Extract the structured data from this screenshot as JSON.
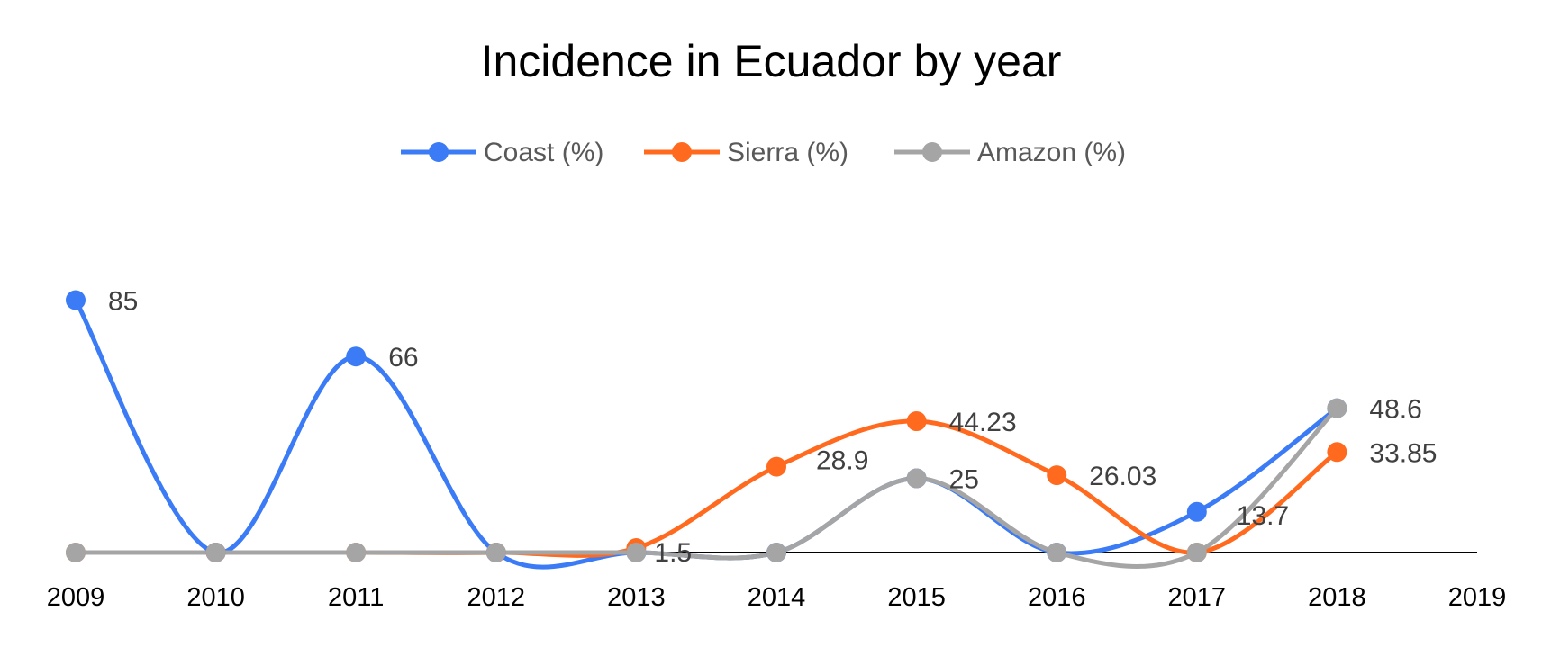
{
  "chart_data": {
    "type": "line",
    "title": "Incidence in Ecuador by year",
    "x": [
      "2009",
      "2010",
      "2011",
      "2012",
      "2013",
      "2014",
      "2015",
      "2016",
      "2017",
      "2018"
    ],
    "x_ticks": [
      "2009",
      "2010",
      "2011",
      "2012",
      "2013",
      "2014",
      "2015",
      "2016",
      "2017",
      "2018",
      "2019"
    ],
    "ylim": [
      0,
      100
    ],
    "smooth": true,
    "grid": false,
    "legend_position": "top",
    "series": [
      {
        "name": "Coast (%)",
        "color": "#3B7BF5",
        "values": [
          85,
          0,
          66,
          0,
          0,
          0,
          25,
          0,
          13.7,
          48.6
        ],
        "labels": [
          "85",
          "",
          "66",
          "",
          "",
          "",
          "",
          "",
          "13.7",
          "48.6"
        ]
      },
      {
        "name": "Sierra (%)",
        "color": "#FF6A1F",
        "values": [
          0,
          0,
          0,
          0,
          1.5,
          28.9,
          44.23,
          26.03,
          0,
          33.85
        ],
        "labels": [
          "",
          "",
          "",
          "",
          "1.5",
          "28.9",
          "44.23",
          "26.03",
          "",
          "33.85"
        ]
      },
      {
        "name": "Amazon (%)",
        "color": "#A5A5A5",
        "values": [
          0,
          0,
          0,
          0,
          0,
          0,
          25,
          0,
          0,
          48.6
        ],
        "labels": [
          "",
          "",
          "",
          "",
          "",
          "",
          "25",
          "",
          "",
          ""
        ]
      }
    ]
  }
}
